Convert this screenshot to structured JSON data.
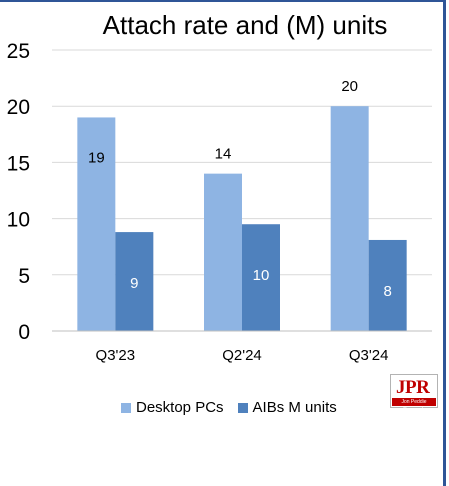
{
  "chart_data": {
    "type": "bar",
    "title": "Attach rate and (M) units",
    "categories": [
      "Q3'23",
      "Q2'24",
      "Q3'24"
    ],
    "series": [
      {
        "name": "Desktop PCs",
        "values": [
          19,
          14,
          20
        ],
        "color": "#8eb4e3"
      },
      {
        "name": "AIBs M units",
        "values": [
          8.8,
          9.5,
          8.1
        ],
        "color": "#4f81bd"
      }
    ],
    "data_labels": [
      [
        "19",
        "14",
        "20"
      ],
      [
        "9",
        "10",
        "8"
      ]
    ],
    "ylim": [
      0,
      25
    ],
    "yticks": [
      0,
      5,
      10,
      15,
      20,
      25
    ],
    "grid": true,
    "legend": "bottom"
  },
  "logo": {
    "text": "JPR",
    "subtext": "Jon Peddie Research"
  }
}
